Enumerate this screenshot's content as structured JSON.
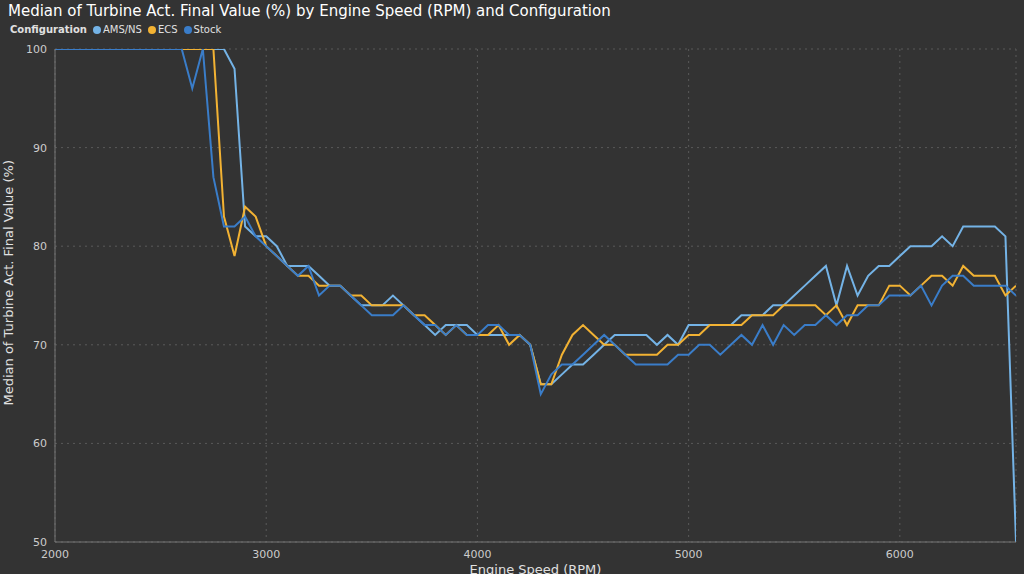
{
  "chart_data": {
    "type": "line",
    "title": "Median of Turbine Act. Final Value (%) by Engine Speed (RPM) and Configuration",
    "x_label": "Engine Speed (RPM)",
    "y_label": "Median of Turbine Act. Final Value (%)",
    "legend_title": "Configuration",
    "legend": "top-left",
    "grid": true,
    "xlim": [
      2000,
      6550
    ],
    "xticks": [
      2000,
      3000,
      4000,
      5000,
      6000
    ],
    "ylim": [
      50,
      100
    ],
    "yticks": [
      50,
      60,
      70,
      80,
      90,
      100
    ],
    "x": [
      2000,
      2500,
      2550,
      2600,
      2650,
      2700,
      2750,
      2800,
      2850,
      2900,
      2950,
      3000,
      3050,
      3100,
      3150,
      3200,
      3250,
      3300,
      3350,
      3400,
      3450,
      3500,
      3550,
      3600,
      3650,
      3700,
      3750,
      3800,
      3850,
      3900,
      3950,
      4000,
      4050,
      4100,
      4150,
      4200,
      4250,
      4300,
      4350,
      4400,
      4450,
      4500,
      4550,
      4600,
      4650,
      4700,
      4750,
      4800,
      4850,
      4900,
      4950,
      5000,
      5050,
      5100,
      5150,
      5200,
      5250,
      5300,
      5350,
      5400,
      5450,
      5500,
      5550,
      5600,
      5650,
      5700,
      5750,
      5800,
      5850,
      5900,
      5950,
      6000,
      6050,
      6100,
      6150,
      6200,
      6250,
      6300,
      6350,
      6400,
      6450,
      6500,
      6550
    ],
    "series": [
      {
        "name": "AMS/NS",
        "color": "#74b3e6",
        "values": [
          100,
          100,
          100,
          100,
          100,
          100,
          100,
          100,
          98,
          82,
          81,
          81,
          80,
          78,
          78,
          78,
          77,
          76,
          76,
          75,
          74,
          74,
          74,
          75,
          74,
          73,
          72,
          71,
          72,
          72,
          72,
          71,
          71,
          71,
          71,
          71,
          70,
          66,
          66,
          67,
          68,
          68,
          69,
          70,
          71,
          71,
          71,
          71,
          70,
          71,
          70,
          72,
          72,
          72,
          72,
          72,
          73,
          73,
          73,
          74,
          74,
          75,
          76,
          77,
          78,
          74,
          78,
          75,
          77,
          78,
          78,
          79,
          80,
          80,
          80,
          81,
          80,
          82,
          82,
          82,
          82,
          81,
          50
        ]
      },
      {
        "name": "ECS",
        "color": "#f2b233",
        "values": [
          100,
          100,
          100,
          100,
          100,
          100,
          100,
          83,
          79,
          84,
          83,
          80,
          79,
          78,
          77,
          77,
          76,
          76,
          76,
          75,
          75,
          74,
          74,
          74,
          74,
          73,
          73,
          72,
          71,
          72,
          71,
          71,
          71,
          72,
          70,
          71,
          70,
          66,
          66,
          69,
          71,
          72,
          71,
          70,
          70,
          69,
          69,
          69,
          69,
          70,
          70,
          71,
          71,
          72,
          72,
          72,
          72,
          73,
          73,
          73,
          74,
          74,
          74,
          74,
          73,
          74,
          72,
          74,
          74,
          74,
          76,
          76,
          75,
          76,
          77,
          77,
          76,
          78,
          77,
          77,
          77,
          75,
          76
        ]
      },
      {
        "name": "Stock",
        "color": "#3a7dc9",
        "values": [
          100,
          100,
          100,
          100,
          96,
          100,
          87,
          82,
          82,
          83,
          81,
          80,
          79,
          78,
          77,
          78,
          75,
          76,
          76,
          75,
          74,
          73,
          73,
          73,
          74,
          73,
          72,
          72,
          71,
          72,
          71,
          71,
          72,
          72,
          71,
          71,
          70,
          65,
          67,
          68,
          68,
          69,
          70,
          71,
          70,
          69,
          68,
          68,
          68,
          68,
          69,
          69,
          70,
          70,
          69,
          70,
          71,
          70,
          72,
          70,
          72,
          71,
          72,
          72,
          73,
          72,
          73,
          73,
          74,
          74,
          75,
          75,
          75,
          76,
          74,
          76,
          77,
          77,
          76,
          76,
          76,
          76,
          75
        ]
      }
    ]
  }
}
